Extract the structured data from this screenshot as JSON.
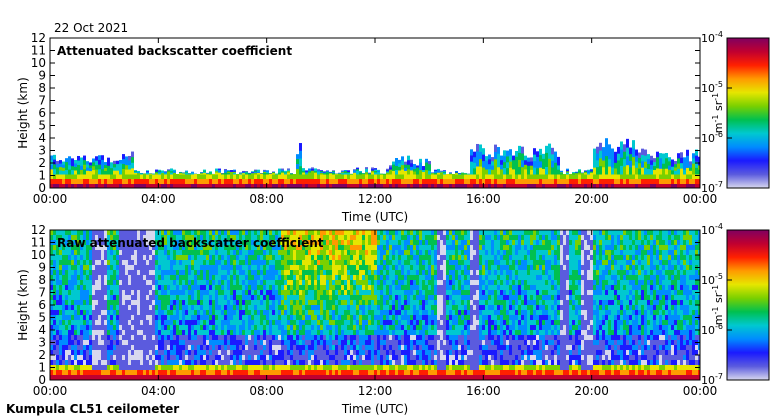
{
  "date_label": "22 Oct 2021",
  "footer_label": "Kumpula CL51 ceilometer",
  "chart_data": [
    {
      "type": "heatmap",
      "title": "Attenuated backscatter coefficient",
      "xlabel": "Time (UTC)",
      "ylabel": "Height (km)",
      "x_ticks": [
        "00:00",
        "04:00",
        "08:00",
        "12:00",
        "16:00",
        "20:00",
        "00:00"
      ],
      "xlim_hours": [
        0,
        24
      ],
      "y_ticks": [
        "0",
        "1",
        "2",
        "3",
        "4",
        "5",
        "6",
        "7",
        "8",
        "9",
        "10",
        "11",
        "12"
      ],
      "ylim_km": [
        0,
        12
      ],
      "colorbar": {
        "scale": "log",
        "range": [
          1e-07,
          0.0001
        ],
        "ticks": [
          "10-7",
          "10-6",
          "10-5",
          "10-4"
        ],
        "unit_label": "m-1 sr-1"
      },
      "layers": [
        {
          "from_hour": 0,
          "to_hour": 3,
          "top_km": 2.8
        },
        {
          "from_hour": 3,
          "to_hour": 9,
          "top_km": 1.5
        },
        {
          "from_hour": 9,
          "to_hour": 9.3,
          "top_km": 3.5
        },
        {
          "from_hour": 9.3,
          "to_hour": 12.5,
          "top_km": 1.6
        },
        {
          "from_hour": 12.5,
          "to_hour": 14,
          "top_km": 2.5
        },
        {
          "from_hour": 14,
          "to_hour": 15.4,
          "top_km": 1.5
        },
        {
          "from_hour": 15.4,
          "to_hour": 18.8,
          "top_km": 3.4
        },
        {
          "from_hour": 18.8,
          "to_hour": 20,
          "top_km": 1.5
        },
        {
          "from_hour": 20,
          "to_hour": 22,
          "top_km": 3.8
        },
        {
          "from_hour": 22,
          "to_hour": 24,
          "top_km": 3.0
        }
      ]
    },
    {
      "type": "heatmap",
      "title": "Raw attenuated backscatter coefficient",
      "xlabel": "Time (UTC)",
      "ylabel": "Height (km)",
      "x_ticks": [
        "00:00",
        "04:00",
        "08:00",
        "12:00",
        "16:00",
        "20:00",
        "00:00"
      ],
      "xlim_hours": [
        0,
        24
      ],
      "y_ticks": [
        "0",
        "1",
        "2",
        "3",
        "4",
        "5",
        "6",
        "7",
        "8",
        "9",
        "10",
        "11",
        "12"
      ],
      "ylim_km": [
        0,
        12
      ],
      "colorbar": {
        "scale": "log",
        "range": [
          1e-07,
          0.0001
        ],
        "ticks": [
          "10-7",
          "10-6",
          "10-5",
          "10-4"
        ],
        "unit_label": "m-1 sr-1"
      },
      "clear_columns_hours": [
        [
          1.5,
          2.0
        ],
        [
          2.5,
          3.8
        ],
        [
          14.2,
          14.6
        ],
        [
          15.4,
          15.8
        ],
        [
          18.8,
          19.1
        ],
        [
          19.6,
          20.0
        ]
      ],
      "high_signal_hours": [
        8.5,
        12.0
      ]
    }
  ],
  "colors": {
    "colormap": [
      "#d8d8ee",
      "#5b5bde",
      "#1a1aff",
      "#008cff",
      "#00c8d0",
      "#00c050",
      "#7ad000",
      "#e6e600",
      "#ff9a00",
      "#ff2000",
      "#c00030",
      "#800060"
    ]
  }
}
